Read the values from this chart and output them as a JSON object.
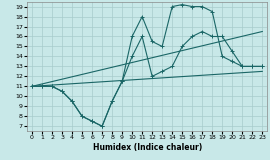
{
  "xlabel": "Humidex (Indice chaleur)",
  "xlim": [
    -0.5,
    23.5
  ],
  "ylim": [
    6.5,
    19.5
  ],
  "xticks": [
    0,
    1,
    2,
    3,
    4,
    5,
    6,
    7,
    8,
    9,
    10,
    11,
    12,
    13,
    14,
    15,
    16,
    17,
    18,
    19,
    20,
    21,
    22,
    23
  ],
  "yticks": [
    7,
    8,
    9,
    10,
    11,
    12,
    13,
    14,
    15,
    16,
    17,
    18,
    19
  ],
  "bg_color": "#c8e8e8",
  "grid_color": "#a8cccc",
  "line_color": "#1a6666",
  "line1_x": [
    0,
    1,
    2,
    3,
    4,
    5,
    6,
    7,
    8,
    9,
    10,
    11,
    12,
    13,
    14,
    15,
    16,
    17,
    18,
    19,
    20,
    21,
    22,
    23
  ],
  "line1_y": [
    11,
    11,
    11,
    10.5,
    9.5,
    8,
    7.5,
    7,
    9.5,
    11.5,
    16,
    18,
    15.5,
    15,
    19,
    19.2,
    19,
    19,
    18.5,
    14,
    13.5,
    13,
    13,
    13
  ],
  "line2_x": [
    0,
    1,
    2,
    3,
    4,
    5,
    6,
    7,
    8,
    9,
    10,
    11,
    12,
    13,
    14,
    15,
    16,
    17,
    18,
    19,
    20,
    21,
    22,
    23
  ],
  "line2_y": [
    11,
    11,
    11,
    10.5,
    9.5,
    8,
    7.5,
    7,
    9.5,
    11.5,
    14,
    16,
    12,
    12.5,
    13,
    15,
    16,
    16.5,
    16,
    16,
    14.5,
    13,
    13,
    13
  ],
  "line3_x": [
    0,
    23
  ],
  "line3_y": [
    11,
    16.5
  ],
  "line4_x": [
    0,
    23
  ],
  "line4_y": [
    11,
    12.5
  ],
  "marker": "+"
}
